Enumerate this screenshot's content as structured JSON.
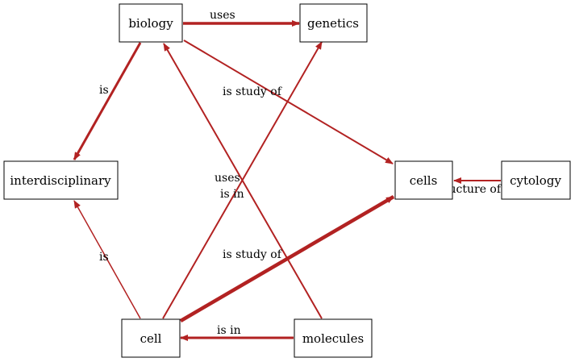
{
  "colors": {
    "edge": "#b22222",
    "node_border": "#000000",
    "background": "#ffffff"
  },
  "nodes": {
    "biology": "biology",
    "genetics": "genetics",
    "interdisciplinary": "interdisciplinary",
    "cells": "cells",
    "cytology": "cytology",
    "cell": "cell",
    "molecules": "molecules"
  },
  "edges": [
    {
      "from": "biology",
      "to": "genetics",
      "label": "uses"
    },
    {
      "from": "biology",
      "to": "interdisciplinary",
      "label": "is"
    },
    {
      "from": "biology",
      "to": "cells",
      "label": "is study of"
    },
    {
      "from": "cell",
      "to": "genetics",
      "label": "uses"
    },
    {
      "from": "molecules",
      "to": "biology",
      "label": "is in"
    },
    {
      "from": "cell",
      "to": "interdisciplinary",
      "label": "is"
    },
    {
      "from": "cell",
      "to": "cells",
      "label": "is study of"
    },
    {
      "from": "cytology",
      "to": "cells",
      "label": "structure of"
    },
    {
      "from": "molecules",
      "to": "cell",
      "label": "is in"
    }
  ]
}
